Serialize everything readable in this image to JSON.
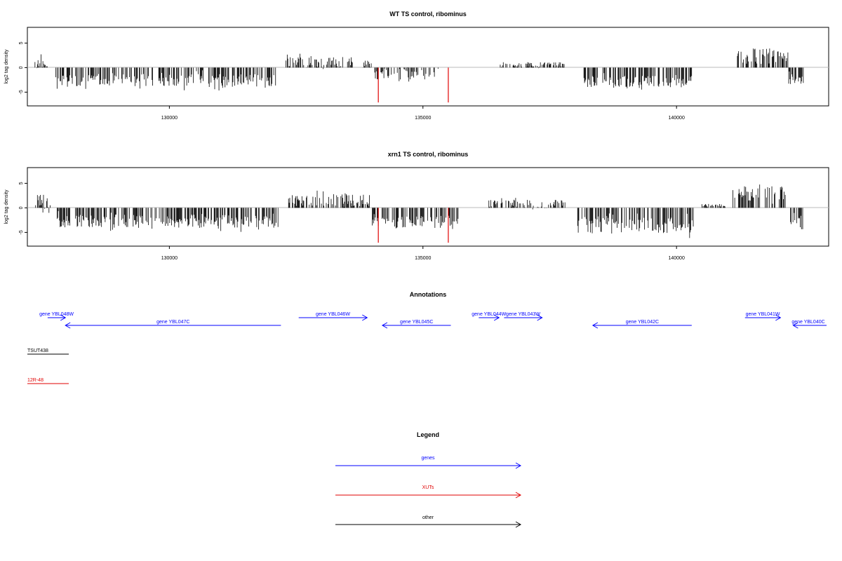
{
  "chart_data": [
    {
      "type": "bar",
      "title": "WT TS control, ribominus",
      "ylabel": "log2 tag density",
      "xlim": [
        127200,
        143000
      ],
      "ylim": [
        -7.8,
        8.2
      ],
      "yticks": [
        -5,
        0,
        5
      ],
      "xticks": [
        130000,
        135000,
        140000
      ],
      "xtick_labels": [
        "130000",
        "135000",
        "140000"
      ],
      "ytick_labels": [
        "-5",
        "0",
        "5"
      ],
      "zero_line": true,
      "regions": [
        {
          "from": 127350,
          "to": 127600,
          "mean": 0.9,
          "amp": 1.2
        },
        {
          "from": 127750,
          "to": 132100,
          "mean": -2.6,
          "amp": 1.3
        },
        {
          "from": 132300,
          "to": 133650,
          "mean": 1.1,
          "amp": 1.1
        },
        {
          "from": 133800,
          "to": 134000,
          "mean": 0.8,
          "amp": 0.7
        },
        {
          "from": 134050,
          "to": 135300,
          "mean": -1.3,
          "amp": 1.1
        },
        {
          "from": 136500,
          "to": 137800,
          "mean": 0.6,
          "amp": 0.5
        },
        {
          "from": 138150,
          "to": 140300,
          "mean": -2.8,
          "amp": 1.2
        },
        {
          "from": 141200,
          "to": 142200,
          "mean": 2.3,
          "amp": 1.6
        },
        {
          "from": 142200,
          "to": 142500,
          "mean": -2.4,
          "amp": 1.0
        }
      ],
      "red_marks": [
        134120,
        135500
      ],
      "red_value": -7.1,
      "bar_color": "#000000",
      "red_color": "#e00000"
    },
    {
      "type": "bar",
      "title": "xrn1 TS control, ribominus",
      "ylabel": "log2 tag density",
      "xlim": [
        127200,
        143000
      ],
      "ylim": [
        -7.8,
        8.2
      ],
      "yticks": [
        -5,
        0,
        5
      ],
      "xticks": [
        130000,
        135000,
        140000
      ],
      "xtick_labels": [
        "130000",
        "135000",
        "140000"
      ],
      "ytick_labels": [
        "-5",
        "0",
        "5"
      ],
      "zero_line": true,
      "regions": [
        {
          "from": 127350,
          "to": 127650,
          "mean": 1.3,
          "amp": 1.5
        },
        {
          "from": 127750,
          "to": 132150,
          "mean": -2.7,
          "amp": 1.4
        },
        {
          "from": 132350,
          "to": 133950,
          "mean": 1.5,
          "amp": 1.3
        },
        {
          "from": 134000,
          "to": 135700,
          "mean": -2.9,
          "amp": 1.3
        },
        {
          "from": 136300,
          "to": 137800,
          "mean": 0.8,
          "amp": 0.9
        },
        {
          "from": 138050,
          "to": 140350,
          "mean": -3.6,
          "amp": 1.6
        },
        {
          "from": 140500,
          "to": 141000,
          "mean": 0.5,
          "amp": 0.3
        },
        {
          "from": 141100,
          "to": 142150,
          "mean": 3.1,
          "amp": 1.7
        },
        {
          "from": 142200,
          "to": 142500,
          "mean": -2.8,
          "amp": 1.2
        }
      ],
      "red_marks": [
        134120,
        135500
      ],
      "red_value": -7.1,
      "bar_color": "#000000",
      "red_color": "#e00000"
    }
  ],
  "annotations": {
    "title": "Annotations",
    "genes": [
      {
        "label": "gene YBL048W",
        "dir": "right",
        "row": 0,
        "from": 127600,
        "to": 127950
      },
      {
        "label": "gene YBL047C",
        "dir": "left",
        "row": 1,
        "from": 127950,
        "to": 132200
      },
      {
        "label": "gene YBL046W",
        "dir": "right",
        "row": 0,
        "from": 132550,
        "to": 133900
      },
      {
        "label": "gene YBL045C",
        "dir": "left",
        "row": 1,
        "from": 134200,
        "to": 135550
      },
      {
        "label": "gene YBL044W",
        "dir": "right",
        "row": 0,
        "from": 136100,
        "to": 136500
      },
      {
        "label": "gene YBL043W",
        "dir": "right",
        "row": 0,
        "from": 136600,
        "to": 137350
      },
      {
        "label": "gene YBL042C",
        "dir": "left",
        "row": 1,
        "from": 138350,
        "to": 140300
      },
      {
        "label": "gene YBL041W",
        "dir": "right",
        "row": 0,
        "from": 141350,
        "to": 142050
      },
      {
        "label": "gene YBL040C",
        "dir": "left",
        "row": 1,
        "from": 142300,
        "to": 143100
      }
    ],
    "other": [
      {
        "label": "TSUT438"
      }
    ],
    "xuts": [
      {
        "label": "12R-48"
      }
    ]
  },
  "legend": {
    "title": "Legend",
    "items": [
      {
        "label": "genes",
        "color": "#0000ff"
      },
      {
        "label": "XUTs",
        "color": "#e00000"
      },
      {
        "label": "other",
        "color": "#000000"
      }
    ]
  }
}
